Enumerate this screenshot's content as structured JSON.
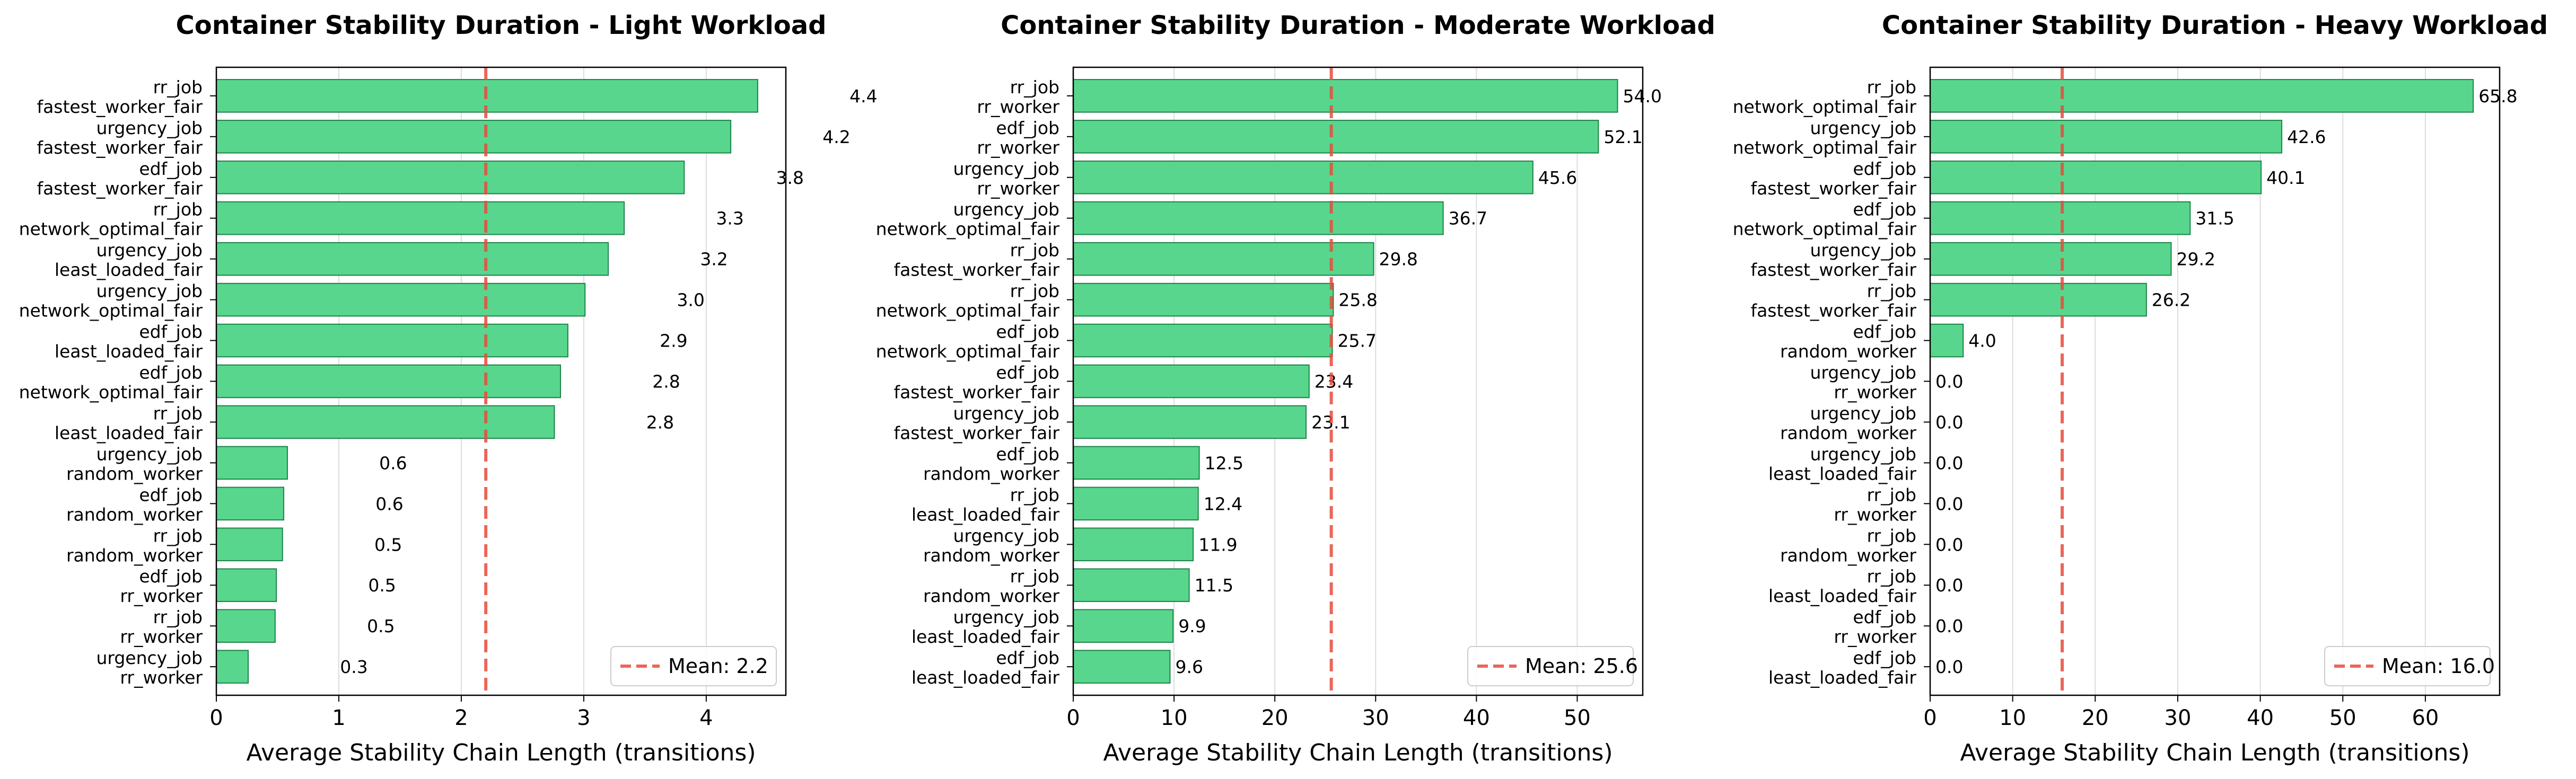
{
  "chart_data": [
    {
      "type": "bar",
      "orientation": "horizontal",
      "title": "Container Stability Duration - Light Workload",
      "xlabel": "Average Stability Chain Length (transitions)",
      "ylabel": "",
      "xlim": [
        0,
        4.65
      ],
      "xticks": [
        0,
        1,
        2,
        3,
        4
      ],
      "grid": "x",
      "bar_color": "#58d68d",
      "bar_edge_color": "#1e8449",
      "mean": 2.2,
      "mean_label": "Mean: 2.2",
      "mean_color": "#e74c3c",
      "legend_position": "lower right",
      "categories": [
        [
          "rr_job",
          "fastest_worker_fair"
        ],
        [
          "urgency_job",
          "fastest_worker_fair"
        ],
        [
          "edf_job",
          "fastest_worker_fair"
        ],
        [
          "rr_job",
          "network_optimal_fair"
        ],
        [
          "urgency_job",
          "least_loaded_fair"
        ],
        [
          "urgency_job",
          "network_optimal_fair"
        ],
        [
          "edf_job",
          "least_loaded_fair"
        ],
        [
          "edf_job",
          "network_optimal_fair"
        ],
        [
          "rr_job",
          "least_loaded_fair"
        ],
        [
          "urgency_job",
          "random_worker"
        ],
        [
          "edf_job",
          "random_worker"
        ],
        [
          "rr_job",
          "random_worker"
        ],
        [
          "edf_job",
          "rr_worker"
        ],
        [
          "rr_job",
          "rr_worker"
        ],
        [
          "urgency_job",
          "rr_worker"
        ]
      ],
      "values": [
        4.42,
        4.2,
        3.82,
        3.33,
        3.2,
        3.01,
        2.87,
        2.81,
        2.76,
        0.58,
        0.55,
        0.54,
        0.49,
        0.48,
        0.26
      ],
      "value_labels": [
        "4.4",
        "4.2",
        "3.8",
        "3.3",
        "3.2",
        "3.0",
        "2.9",
        "2.8",
        "2.8",
        "0.6",
        "0.6",
        "0.5",
        "0.5",
        "0.5",
        "0.3"
      ]
    },
    {
      "type": "bar",
      "orientation": "horizontal",
      "title": "Container Stability Duration - Moderate Workload",
      "xlabel": "Average Stability Chain Length (transitions)",
      "ylabel": "",
      "xlim": [
        0,
        56.5
      ],
      "xticks": [
        0,
        10,
        20,
        30,
        40,
        50
      ],
      "grid": "x",
      "bar_color": "#58d68d",
      "bar_edge_color": "#1e8449",
      "mean": 25.6,
      "mean_label": "Mean: 25.6",
      "mean_color": "#e74c3c",
      "legend_position": "lower right",
      "categories": [
        [
          "rr_job",
          "rr_worker"
        ],
        [
          "edf_job",
          "rr_worker"
        ],
        [
          "urgency_job",
          "rr_worker"
        ],
        [
          "urgency_job",
          "network_optimal_fair"
        ],
        [
          "rr_job",
          "fastest_worker_fair"
        ],
        [
          "rr_job",
          "network_optimal_fair"
        ],
        [
          "edf_job",
          "network_optimal_fair"
        ],
        [
          "edf_job",
          "fastest_worker_fair"
        ],
        [
          "urgency_job",
          "fastest_worker_fair"
        ],
        [
          "edf_job",
          "random_worker"
        ],
        [
          "rr_job",
          "least_loaded_fair"
        ],
        [
          "urgency_job",
          "random_worker"
        ],
        [
          "rr_job",
          "random_worker"
        ],
        [
          "urgency_job",
          "least_loaded_fair"
        ],
        [
          "edf_job",
          "least_loaded_fair"
        ]
      ],
      "values": [
        54.0,
        52.1,
        45.6,
        36.7,
        29.8,
        25.8,
        25.7,
        23.4,
        23.1,
        12.5,
        12.4,
        11.9,
        11.5,
        9.9,
        9.6
      ],
      "value_labels": [
        "54.0",
        "52.1",
        "45.6",
        "36.7",
        "29.8",
        "25.8",
        "25.7",
        "23.4",
        "23.1",
        "12.5",
        "12.4",
        "11.9",
        "11.5",
        "9.9",
        "9.6"
      ]
    },
    {
      "type": "bar",
      "orientation": "horizontal",
      "title": "Container Stability Duration - Heavy Workload",
      "xlabel": "Average Stability Chain Length (transitions)",
      "ylabel": "",
      "xlim": [
        0,
        69
      ],
      "xticks": [
        0,
        10,
        20,
        30,
        40,
        50,
        60
      ],
      "grid": "x",
      "bar_color": "#58d68d",
      "bar_edge_color": "#1e8449",
      "mean": 16.0,
      "mean_label": "Mean: 16.0",
      "mean_color": "#e74c3c",
      "legend_position": "lower right",
      "categories": [
        [
          "rr_job",
          "network_optimal_fair"
        ],
        [
          "urgency_job",
          "network_optimal_fair"
        ],
        [
          "edf_job",
          "fastest_worker_fair"
        ],
        [
          "edf_job",
          "network_optimal_fair"
        ],
        [
          "urgency_job",
          "fastest_worker_fair"
        ],
        [
          "rr_job",
          "fastest_worker_fair"
        ],
        [
          "edf_job",
          "random_worker"
        ],
        [
          "urgency_job",
          "rr_worker"
        ],
        [
          "urgency_job",
          "random_worker"
        ],
        [
          "urgency_job",
          "least_loaded_fair"
        ],
        [
          "rr_job",
          "rr_worker"
        ],
        [
          "rr_job",
          "random_worker"
        ],
        [
          "rr_job",
          "least_loaded_fair"
        ],
        [
          "edf_job",
          "rr_worker"
        ],
        [
          "edf_job",
          "least_loaded_fair"
        ]
      ],
      "values": [
        65.8,
        42.6,
        40.1,
        31.5,
        29.2,
        26.2,
        4.0,
        0.0,
        0.0,
        0.0,
        0.0,
        0.0,
        0.0,
        0.0,
        0.0
      ],
      "value_labels": [
        "65.8",
        "42.6",
        "40.1",
        "31.5",
        "29.2",
        "26.2",
        "4.0",
        "0.0",
        "0.0",
        "0.0",
        "0.0",
        "0.0",
        "0.0",
        "0.0",
        "0.0"
      ]
    }
  ]
}
